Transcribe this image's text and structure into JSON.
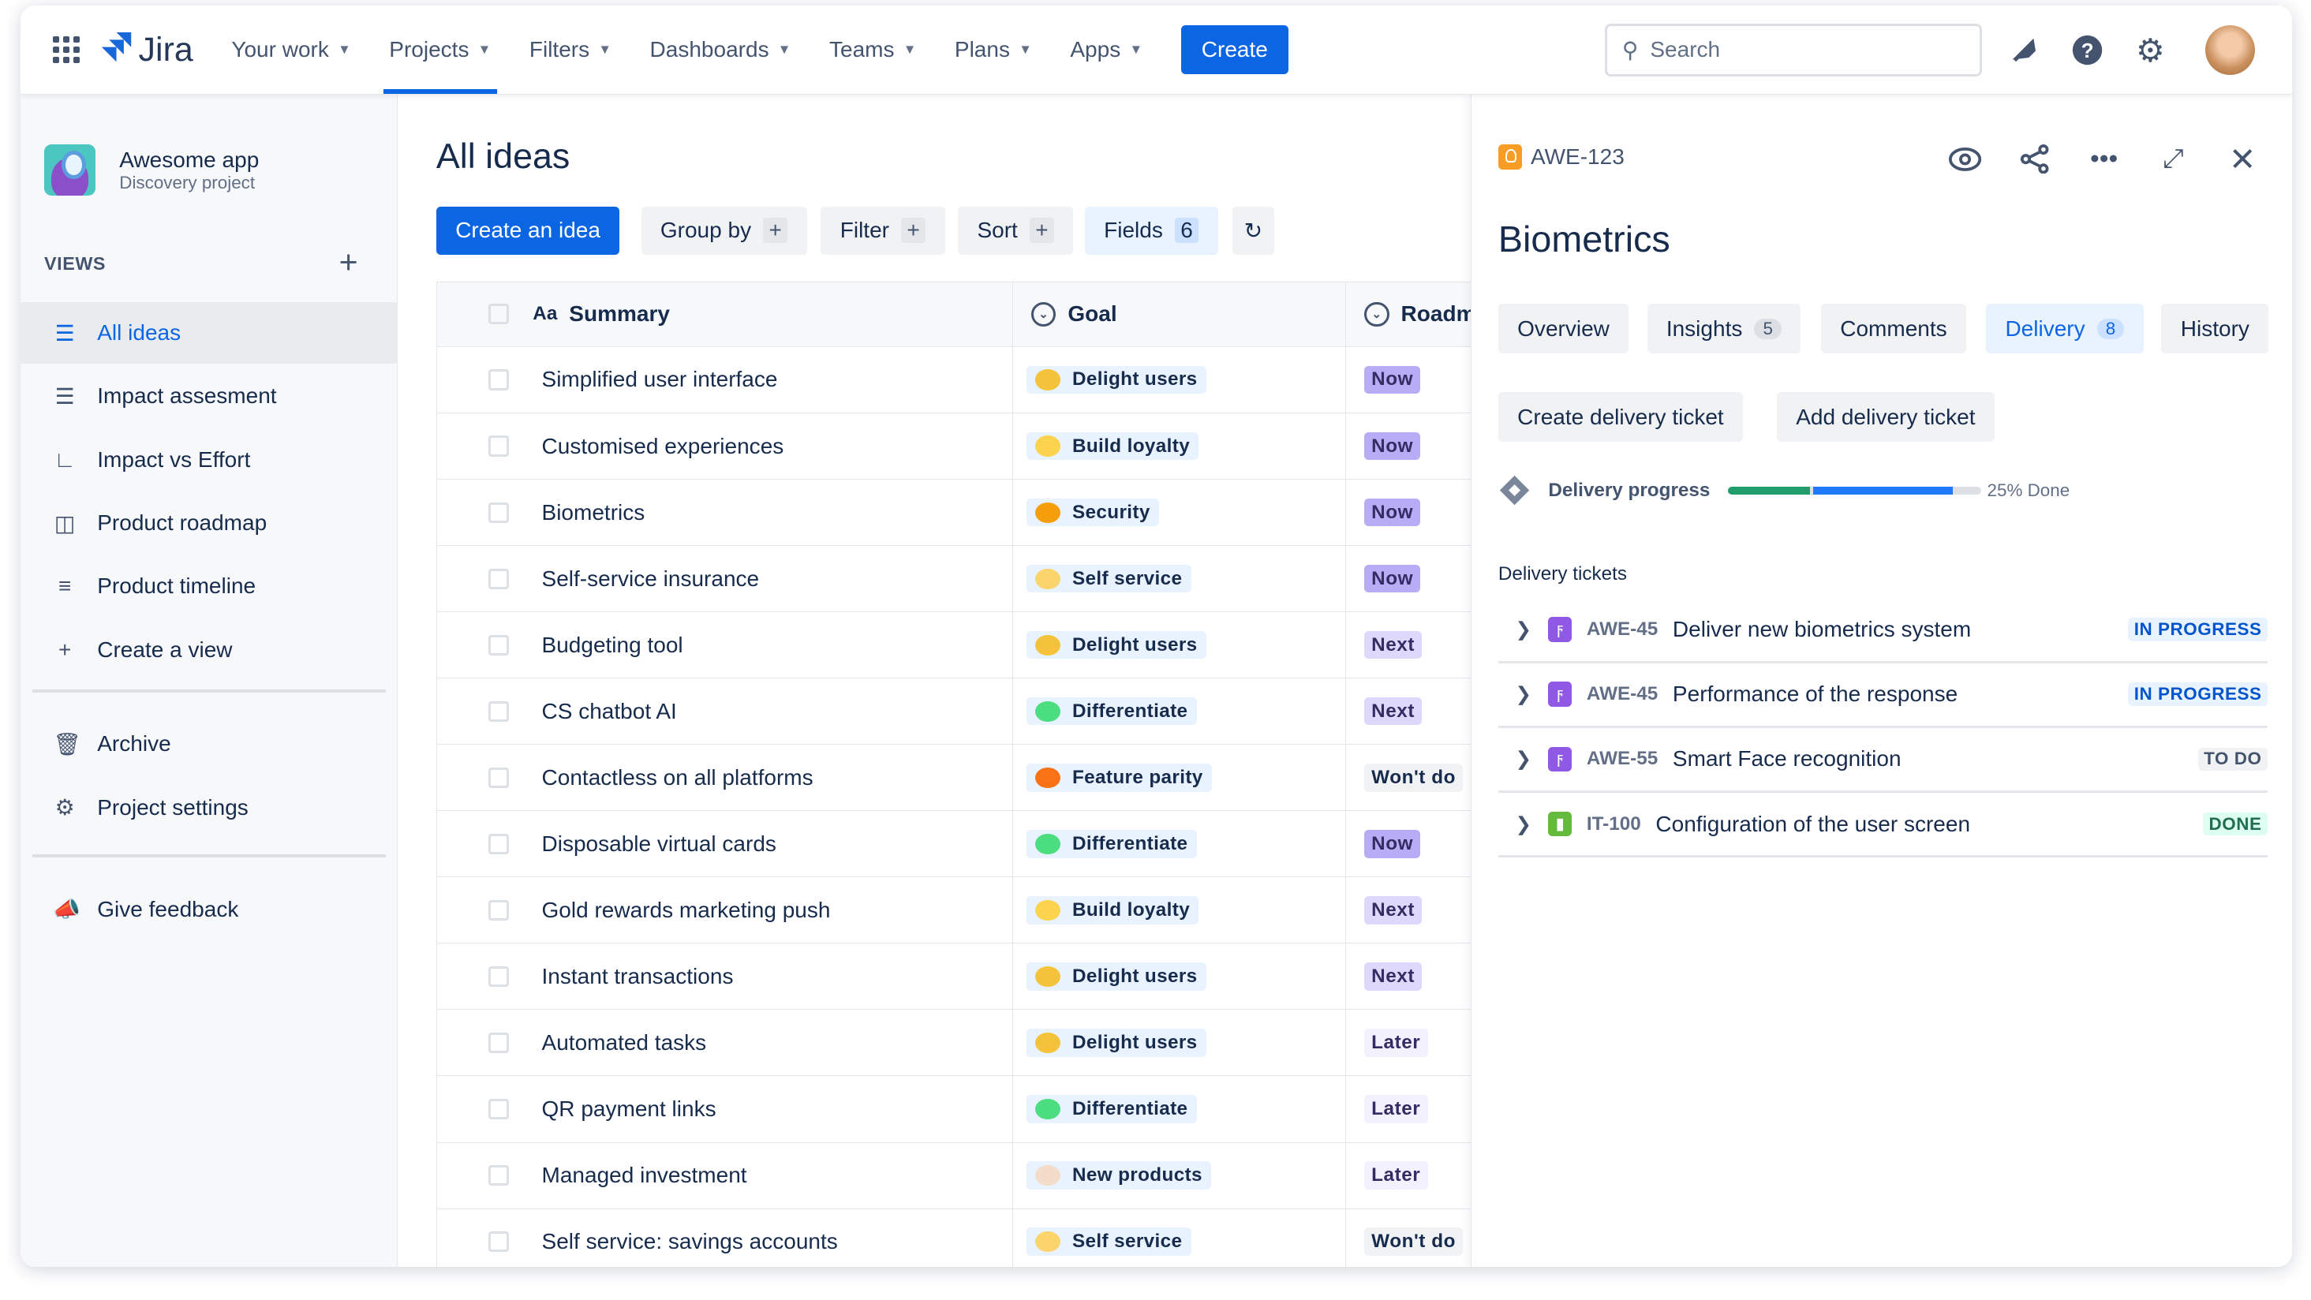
{
  "nav": {
    "app": "Jira",
    "items": [
      {
        "label": "Your work"
      },
      {
        "label": "Projects",
        "active": true
      },
      {
        "label": "Filters"
      },
      {
        "label": "Dashboards"
      },
      {
        "label": "Teams"
      },
      {
        "label": "Plans"
      },
      {
        "label": "Apps"
      }
    ],
    "create": "Create",
    "search_placeholder": "Search"
  },
  "sidebar": {
    "project_name": "Awesome app",
    "project_type": "Discovery project",
    "views_heading": "VIEWS",
    "items": [
      {
        "label": "All ideas",
        "icon": "list-icon",
        "active": true
      },
      {
        "label": "Impact assesment",
        "icon": "list-icon"
      },
      {
        "label": "Impact vs Effort",
        "icon": "matrix-chart-icon"
      },
      {
        "label": "Product roadmap",
        "icon": "board-icon"
      },
      {
        "label": "Product timeline",
        "icon": "timeline-icon"
      },
      {
        "label": "Create a view",
        "icon": "plus-icon"
      }
    ],
    "secondary": [
      {
        "label": "Archive",
        "icon": "trash-icon"
      },
      {
        "label": "Project settings",
        "icon": "gear-icon"
      }
    ],
    "feedback": "Give feedback"
  },
  "main": {
    "title": "All ideas",
    "toolbar": {
      "create": "Create an idea",
      "group_by": "Group by",
      "filter": "Filter",
      "sort": "Sort",
      "fields": "Fields",
      "fields_count": "6"
    },
    "columns": {
      "summary": "Summary",
      "goal": "Goal",
      "roadmap": "Roadm"
    },
    "rows": [
      {
        "summary": "Simplified user interface",
        "goal": "Delight users",
        "roadmap": "Now"
      },
      {
        "summary": "Customised experiences",
        "goal": "Build loyalty",
        "roadmap": "Now"
      },
      {
        "summary": "Biometrics",
        "goal": "Security",
        "roadmap": "Now"
      },
      {
        "summary": "Self-service insurance",
        "goal": "Self service",
        "roadmap": "Now"
      },
      {
        "summary": "Budgeting tool",
        "goal": "Delight users",
        "roadmap": "Next"
      },
      {
        "summary": "CS chatbot AI",
        "goal": "Differentiate",
        "roadmap": "Next"
      },
      {
        "summary": "Contactless on all platforms",
        "goal": "Feature parity",
        "roadmap": "Won't do"
      },
      {
        "summary": "Disposable virtual cards",
        "goal": "Differentiate",
        "roadmap": "Now"
      },
      {
        "summary": "Gold rewards marketing push",
        "goal": "Build loyalty",
        "roadmap": "Next"
      },
      {
        "summary": "Instant transactions",
        "goal": "Delight users",
        "roadmap": "Next"
      },
      {
        "summary": "Automated tasks",
        "goal": "Delight users",
        "roadmap": "Later"
      },
      {
        "summary": "QR payment links",
        "goal": "Differentiate",
        "roadmap": "Later"
      },
      {
        "summary": "Managed investment",
        "goal": "New products",
        "roadmap": "Later"
      },
      {
        "summary": "Self service: savings accounts",
        "goal": "Self service",
        "roadmap": "Won't do"
      }
    ]
  },
  "goal_colors": {
    "Delight users": "#f5c33b",
    "Build loyalty": "#fcd34d",
    "Security": "#f59e0b",
    "Self service": "#fbd46b",
    "Differentiate": "#4ade80",
    "Feature parity": "#f97316",
    "New products": "#f3dcc8"
  },
  "roadmap_styles": {
    "Now": {
      "bg": "#b8acf6",
      "fg": "#352c63"
    },
    "Next": {
      "bg": "#dfd8fd",
      "fg": "#352c63"
    },
    "Later": {
      "bg": "#f3f0ff",
      "fg": "#352c63"
    },
    "Won't do": {
      "bg": "#f1f2f4",
      "fg": "#172b4d"
    }
  },
  "panel": {
    "key": "AWE-123",
    "title": "Biometrics",
    "tabs": [
      {
        "label": "Overview"
      },
      {
        "label": "Insights",
        "count": "5"
      },
      {
        "label": "Comments"
      },
      {
        "label": "Delivery",
        "count": "8",
        "active": true
      },
      {
        "label": "History"
      }
    ],
    "create_ticket": "Create delivery ticket",
    "add_ticket": "Add delivery ticket",
    "progress_label": "Delivery progress",
    "progress": {
      "done_pct": 25,
      "in_progress_pct": 55
    },
    "progress_text": "25% Done",
    "tickets_heading": "Delivery tickets",
    "tickets": [
      {
        "key": "AWE-45",
        "name": "Deliver new biometrics system",
        "status": "IN PROGRESS",
        "type": "epic"
      },
      {
        "key": "AWE-45",
        "name": "Performance of the response",
        "status": "IN PROGRESS",
        "type": "epic"
      },
      {
        "key": "AWE-55",
        "name": "Smart Face recognition",
        "status": "TO DO",
        "type": "epic"
      },
      {
        "key": "IT-100",
        "name": "Configuration of the user screen",
        "status": "DONE",
        "type": "story"
      }
    ]
  },
  "status_colors": {
    "IN PROGRESS": {
      "bg": "#e9f2ff",
      "fg": "#0055cc"
    },
    "TO DO": {
      "bg": "#f1f2f4",
      "fg": "#44546f"
    },
    "DONE": {
      "bg": "#dcfff1",
      "fg": "#216e4e"
    }
  }
}
